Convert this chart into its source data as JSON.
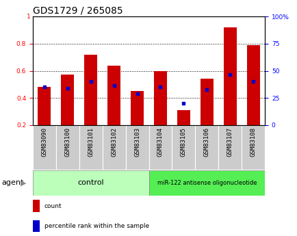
{
  "title": "GDS1729 / 265085",
  "samples": [
    "GSM83090",
    "GSM83100",
    "GSM83101",
    "GSM83102",
    "GSM83103",
    "GSM83104",
    "GSM83105",
    "GSM83106",
    "GSM83107",
    "GSM83108"
  ],
  "count_values": [
    0.48,
    0.57,
    0.72,
    0.64,
    0.45,
    0.6,
    0.31,
    0.54,
    0.92,
    0.79
  ],
  "percentile_values": [
    0.48,
    0.47,
    0.52,
    0.49,
    0.43,
    0.48,
    0.36,
    0.46,
    0.57,
    0.52
  ],
  "bar_bottom": 0.2,
  "ylim_left": [
    0.2,
    1.0
  ],
  "yticks_left": [
    0.2,
    0.4,
    0.6,
    0.8
  ],
  "ytick_labels_left": [
    "0.2",
    "0.4",
    "0.6",
    "0.8"
  ],
  "ytick_top_label": "1",
  "yticks_right": [
    0,
    25,
    50,
    75,
    100
  ],
  "ytick_labels_right": [
    "0",
    "25",
    "50",
    "75",
    "100%"
  ],
  "bar_color": "#cc0000",
  "dot_color": "#0000cc",
  "bar_width": 0.55,
  "control_label": "control",
  "treatment_label": "miR-122 antisense oligonucleotide",
  "agent_label": "agent",
  "legend_count_label": "count",
  "legend_percentile_label": "percentile rank within the sample",
  "control_bg": "#bbffbb",
  "treatment_bg": "#55ee55",
  "tick_bg": "#cccccc",
  "title_fontsize": 10,
  "tick_fontsize": 6.5,
  "label_fontsize": 8,
  "agent_fontsize": 8
}
